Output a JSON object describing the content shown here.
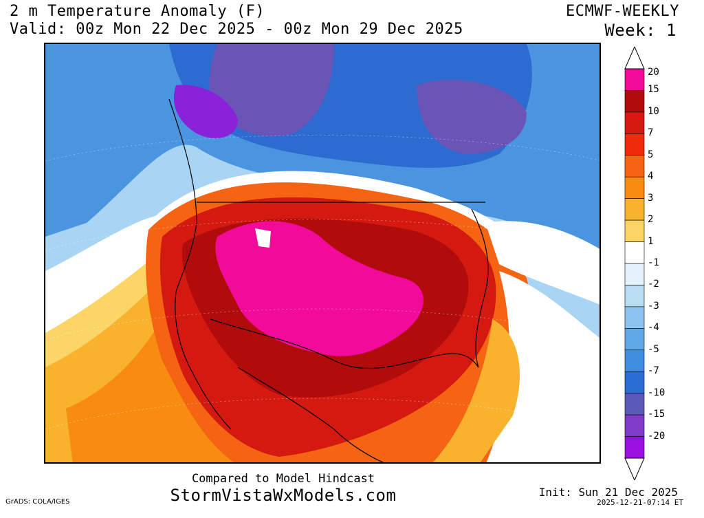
{
  "header": {
    "title": "2 m Temperature Anomaly (F)",
    "valid": "Valid: 00z Mon 22 Dec 2025 - 00z Mon 29 Dec 2025",
    "model": "ECMWF-WEEKLY",
    "week": "Week: 1"
  },
  "colorbar": {
    "labels": [
      "20",
      "15",
      "10",
      "7",
      "5",
      "4",
      "3",
      "2",
      "1",
      "-1",
      "-2",
      "-3",
      "-4",
      "-5",
      "-7",
      "-10",
      "-15",
      "-20"
    ],
    "colors": [
      "#f20a9a",
      "#b10c0c",
      "#d41a10",
      "#ee2c0c",
      "#f46412",
      "#f78c10",
      "#f9b22e",
      "#fbd565",
      "#ffffff",
      "#e4f2fb",
      "#b9def4",
      "#8ac4ee",
      "#5ea8e6",
      "#3f8ee0",
      "#2a6ed2",
      "#5a59b8",
      "#7e3cc8",
      "#9a10e0"
    ]
  },
  "map": {
    "colors": {
      "far_cold": "#a9d4f3",
      "cold": "#4b94e0",
      "deep_cold": "#2e6bd0",
      "purple": "#6a54b6",
      "violet": "#8a22d8",
      "neutral": "#ffffff",
      "light_warm": "#fbd565",
      "warm": "#f9b22e",
      "orange": "#f46412",
      "red": "#d41a10",
      "dark_red": "#b10c0c",
      "magenta": "#f20a9a"
    }
  },
  "footer": {
    "compared": "Compared to Model Hindcast",
    "site": "StormVistaWxModels.com",
    "grads": "GrADS: COLA/IGES",
    "init": "Init: Sun 21 Dec 2025",
    "stamp": "2025-12-21-07:14 ET"
  }
}
